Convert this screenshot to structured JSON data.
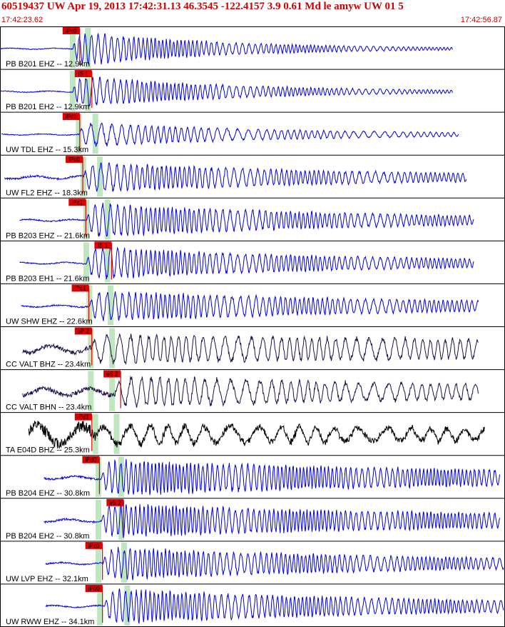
{
  "header": {
    "title": "60519437 UW Apr 19, 2013 17:42:31.13    46.3545 -122.4157  3.9 0.61 Md le amyw UW 01    5",
    "start_time": "17:42:23.62",
    "end_time": "17:42:56.87"
  },
  "colors": {
    "header_text": "#d00000",
    "trace_blue": "#0000dd",
    "trace_dark": "#20104a",
    "trace_black": "#000000",
    "pick_box": "#e00000",
    "window_band": "#bfe6bf",
    "divider": "#000000"
  },
  "chart_data": {
    "type": "line",
    "x_unit": "seconds",
    "xlim": [
      0,
      33.25
    ],
    "traces": [
      {
        "label": "PB B201 EHZ -- 12.9km",
        "color": "trace_blue",
        "start": 0.0,
        "end": 29.9,
        "onset": 4.8,
        "amp": 0.85,
        "noise": 0.05,
        "freq": 3.2,
        "decay": 0.1,
        "pick": {
          "label": "iPc0",
          "t": 4.7
        },
        "bands": [
          4.8,
          5.8
        ],
        "secondary": []
      },
      {
        "label": "PB B201 EH2 -- 12.9km",
        "color": "trace_blue",
        "start": 0.0,
        "end": 29.9,
        "onset": 4.8,
        "amp": 0.8,
        "noise": 0.05,
        "freq": 3.0,
        "decay": 0.09,
        "pick": {
          "label": "iS 1",
          "t": 5.5
        },
        "bands": [
          4.8,
          5.8
        ],
        "secondary": []
      },
      {
        "label": "UW TDL EHZ -- 15.3km",
        "color": "trace_blue",
        "start": 0.1,
        "end": 30.3,
        "onset": 5.2,
        "amp": 0.6,
        "noise": 0.05,
        "freq": 2.0,
        "decay": 0.07,
        "pick": {
          "label": "iPc1",
          "t": 4.7
        },
        "bands": [
          5.2,
          6.3
        ],
        "secondary": []
      },
      {
        "label": "UW FL2 EHZ -- 18.3km",
        "color": "trace_blue",
        "start": 0.3,
        "end": 30.8,
        "onset": 5.5,
        "amp": 0.75,
        "noise": 0.12,
        "freq": 2.6,
        "decay": 0.05,
        "pick": {
          "label": "iPc0",
          "t": 4.9
        },
        "bands": [
          5.5,
          6.6
        ],
        "secondary": []
      },
      {
        "label": "PB B203 EHZ -- 21.6km",
        "color": "trace_blue",
        "start": 1.3,
        "end": 31.3,
        "onset": 5.7,
        "amp": 0.85,
        "noise": 0.08,
        "freq": 2.8,
        "decay": 0.05,
        "pick": {
          "label": "iPc1",
          "t": 5.1
        },
        "bands": [
          5.7,
          7.1
        ],
        "secondary": []
      },
      {
        "label": "PB B203 EH1 -- 21.6km",
        "color": "trace_blue",
        "start": 1.3,
        "end": 31.3,
        "onset": 5.7,
        "amp": 0.8,
        "noise": 0.07,
        "freq": 2.8,
        "decay": 0.05,
        "pick": {
          "label": "iS 1",
          "t": 6.8
        },
        "bands": [
          5.7,
          7.1
        ],
        "secondary": []
      },
      {
        "label": "UW SHW EHZ -- 22.6km",
        "color": "trace_blue",
        "start": 1.4,
        "end": 31.6,
        "onset": 5.9,
        "amp": 0.75,
        "noise": 0.08,
        "freq": 2.6,
        "decay": 0.04,
        "pick": {
          "label": "iPc1",
          "t": 5.3
        },
        "bands": [
          5.9,
          7.3
        ],
        "secondary": []
      },
      {
        "label": "CC VALT BHZ -- 23.4km",
        "color": "trace_dark",
        "start": 1.5,
        "end": 31.6,
        "onset": 6.0,
        "amp": 0.7,
        "noise": 0.28,
        "freq": 1.6,
        "decay": 0.015,
        "pick": {
          "label": "eP 2",
          "t": 5.5
        },
        "bands": [
          6.0,
          7.4
        ],
        "secondary": []
      },
      {
        "label": "CC VALT BHN -- 23.4km",
        "color": "trace_dark",
        "start": 1.5,
        "end": 31.6,
        "onset": 7.6,
        "amp": 0.75,
        "noise": 0.3,
        "freq": 1.4,
        "decay": 0.03,
        "pick": {
          "label": "eS 2",
          "t": 7.4
        },
        "bands": [
          6.0,
          7.4
        ],
        "secondary": []
      },
      {
        "label": "TA E04D BHZ -- 25.3km",
        "color": "trace_black",
        "start": 1.9,
        "end": 32.0,
        "onset": 6.3,
        "amp": 0.5,
        "noise": 0.75,
        "freq": 0.7,
        "decay": 0.02,
        "pick": {
          "label": "iPd1",
          "t": 5.5
        },
        "bands": [
          6.3,
          7.7
        ],
        "secondary": []
      },
      {
        "label": "PB B204 EHZ -- 30.8km",
        "color": "trace_blue",
        "start": 2.9,
        "end": 33.0,
        "onset": 6.7,
        "amp": 0.85,
        "noise": 0.12,
        "freq": 3.4,
        "decay": 0.03,
        "pick": {
          "label": "iPd0",
          "t": 6.0
        },
        "bands": [
          6.5,
          8.0
        ],
        "secondary": []
      },
      {
        "label": "PB B204 EH2 -- 30.8km",
        "color": "trace_blue",
        "start": 2.9,
        "end": 33.0,
        "onset": 6.7,
        "amp": 0.8,
        "noise": 0.12,
        "freq": 3.4,
        "decay": 0.03,
        "pick": {
          "label": "eS 2",
          "t": 7.6
        },
        "bands": [
          6.5,
          8.0
        ],
        "secondary": []
      },
      {
        "label": "UW LVP EHZ -- 32.1km",
        "color": "trace_blue",
        "start": 3.0,
        "end": 33.25,
        "onset": 6.8,
        "amp": 0.8,
        "noise": 0.08,
        "freq": 3.0,
        "decay": 0.04,
        "pick": {
          "label": "iPc0",
          "t": 6.2
        },
        "bands": [
          6.5,
          8.2
        ],
        "secondary": []
      },
      {
        "label": "UW RWW EHZ -- 34.1km",
        "color": "trace_blue",
        "start": 3.0,
        "end": 33.25,
        "onset": 6.9,
        "amp": 0.85,
        "noise": 0.08,
        "freq": 3.0,
        "decay": 0.04,
        "pick": {
          "label": "iP00",
          "t": 6.2
        },
        "bands": [
          6.6,
          8.4
        ],
        "secondary": []
      }
    ]
  }
}
